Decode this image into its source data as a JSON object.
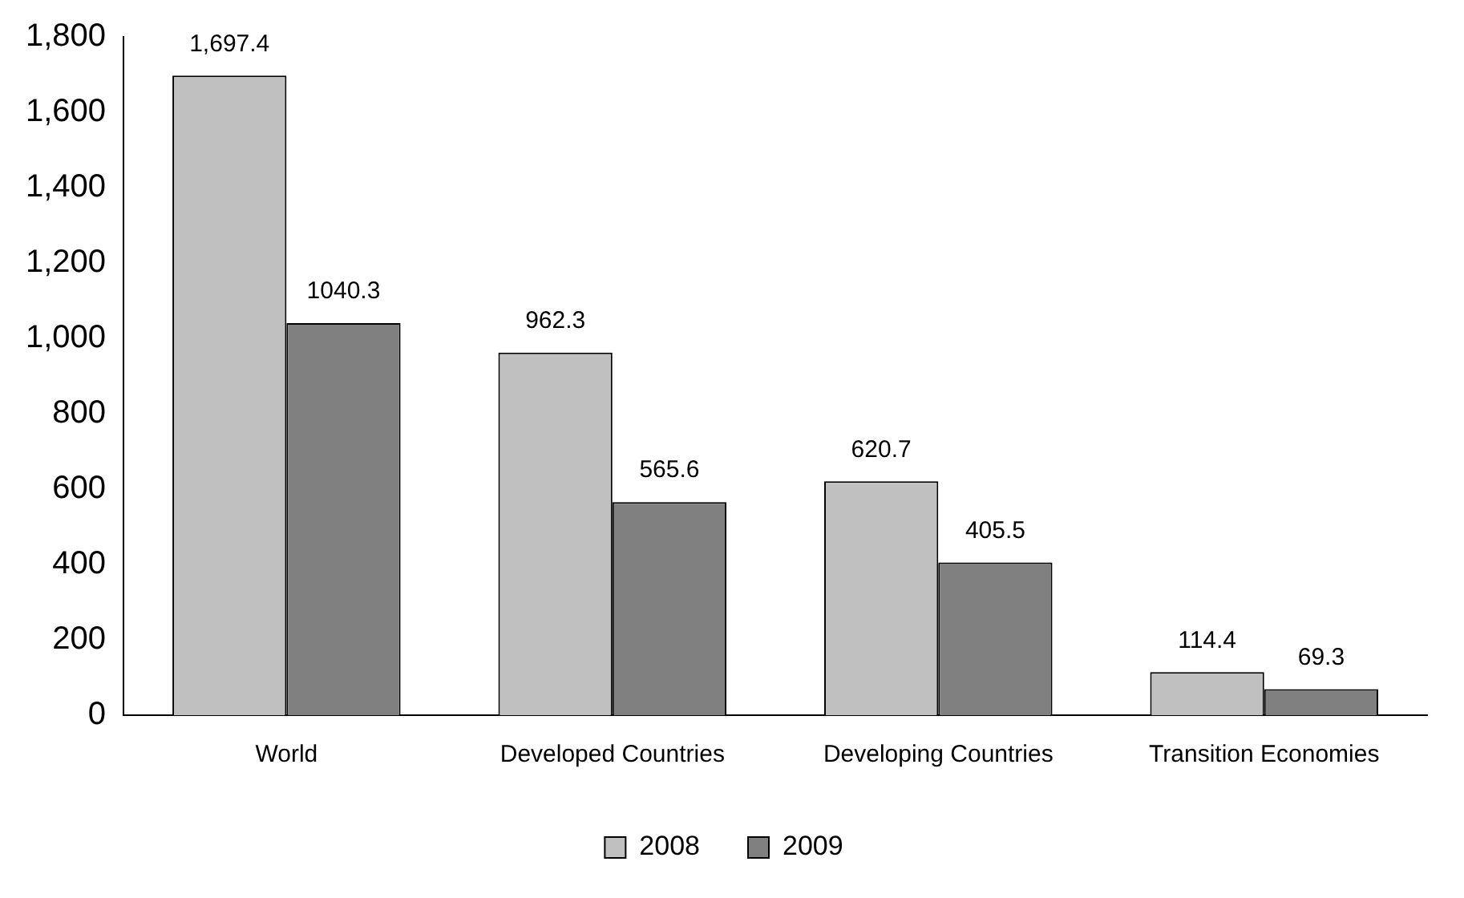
{
  "chart_data": {
    "type": "bar",
    "categories": [
      "World",
      "Developed Countries",
      "Developing Countries",
      "Transition Economies"
    ],
    "series": [
      {
        "name": "2008",
        "color": "#c0c0c0",
        "values": [
          1697.4,
          962.3,
          620.7,
          114.4
        ],
        "value_labels": [
          "1,697.4",
          "962.3",
          "620.7",
          "114.4"
        ]
      },
      {
        "name": "2009",
        "color": "#808080",
        "values": [
          1040.3,
          565.6,
          405.5,
          69.3
        ],
        "value_labels": [
          "1040.3",
          "565.6",
          "405.5",
          "69.3"
        ]
      }
    ],
    "ylim": [
      0,
      1800
    ],
    "yticks": [
      {
        "value": 0,
        "label": "0"
      },
      {
        "value": 200,
        "label": "200"
      },
      {
        "value": 400,
        "label": "400"
      },
      {
        "value": 600,
        "label": "600"
      },
      {
        "value": 800,
        "label": "800"
      },
      {
        "value": 1000,
        "label": "1,000"
      },
      {
        "value": 1200,
        "label": "1,200"
      },
      {
        "value": 1400,
        "label": "1,400"
      },
      {
        "value": 1600,
        "label": "1,600"
      },
      {
        "value": 1800,
        "label": "1,800"
      }
    ],
    "grid": false,
    "legend": "bottom"
  }
}
